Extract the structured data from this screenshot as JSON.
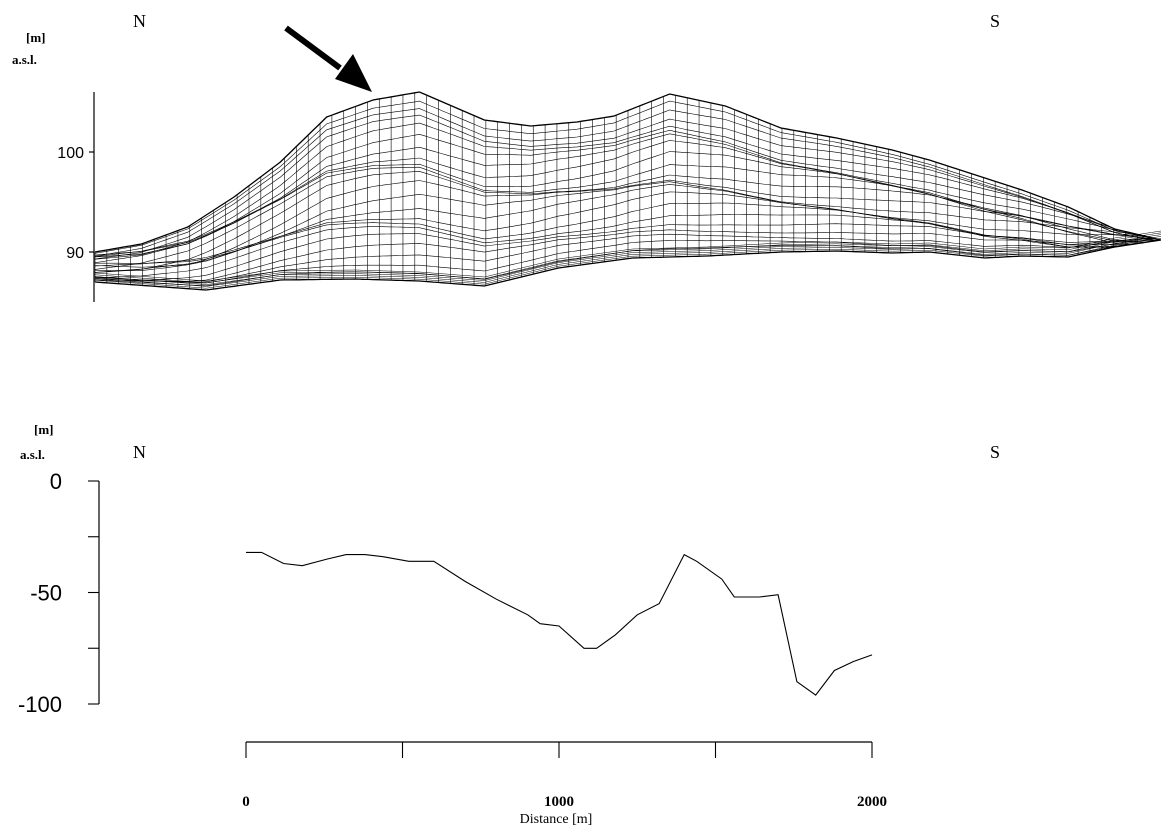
{
  "chart_data": [
    {
      "type": "wireframe-surface",
      "unit_label": "[m]",
      "unit_label_2": "a.s.l.",
      "left_direction": "N",
      "right_direction": "S",
      "yticks": [
        100,
        90
      ],
      "y_display_range": [
        85,
        106
      ],
      "arrow_points_to": "highest peak near northern end",
      "ridge_profile": {
        "x": [
          0,
          50,
          100,
          150,
          200,
          250,
          300,
          350,
          420,
          470,
          520,
          560,
          620,
          680,
          740,
          800,
          860,
          900,
          960,
          1000,
          1050,
          1100,
          1150
        ],
        "y": [
          90,
          90.8,
          92.5,
          95.5,
          99,
          103.5,
          105.2,
          106,
          103.2,
          102.6,
          103,
          103.6,
          105.8,
          104.6,
          102.4,
          101.4,
          100.2,
          99.2,
          97.4,
          96.2,
          94.5,
          92.3,
          91.2
        ]
      },
      "base_profile": {
        "x": [
          0,
          60,
          120,
          200,
          280,
          350,
          420,
          500,
          580,
          660,
          740,
          800,
          860,
          900,
          960,
          1000,
          1050,
          1100,
          1150
        ],
        "y": [
          87,
          86.6,
          86.2,
          87.2,
          87.3,
          87.1,
          86.6,
          88.4,
          89.4,
          89.6,
          90,
          90.1,
          89.9,
          90,
          89.4,
          89.6,
          89.5,
          90.5,
          91.2
        ]
      }
    },
    {
      "type": "line",
      "unit_label": "[m]",
      "unit_label_2": "a.s.l.",
      "left_direction": "N",
      "right_direction": "S",
      "xlabel": "Distance [m]",
      "xticks": [
        0,
        1000,
        2000
      ],
      "yticks": [
        0,
        -50,
        -100
      ],
      "xlim": [
        0,
        2000
      ],
      "ylim": [
        -100,
        0
      ],
      "series": [
        {
          "x": [
            0,
            50,
            120,
            180,
            260,
            320,
            380,
            440,
            520,
            600,
            700,
            800,
            900,
            940,
            1000,
            1080,
            1120,
            1180,
            1250,
            1320,
            1400,
            1440,
            1520,
            1560,
            1640,
            1700,
            1760,
            1820,
            1880,
            1940,
            2000
          ],
          "values": [
            -32,
            -32,
            -37,
            -38,
            -35,
            -33,
            -33,
            -34,
            -36,
            -36,
            -45,
            -53,
            -60,
            -64,
            -65,
            -75,
            -75,
            -69,
            -60,
            -55,
            -33,
            -36,
            -44,
            -52,
            -52,
            -51,
            -90,
            -96,
            -85,
            -81,
            -78
          ]
        }
      ]
    }
  ]
}
